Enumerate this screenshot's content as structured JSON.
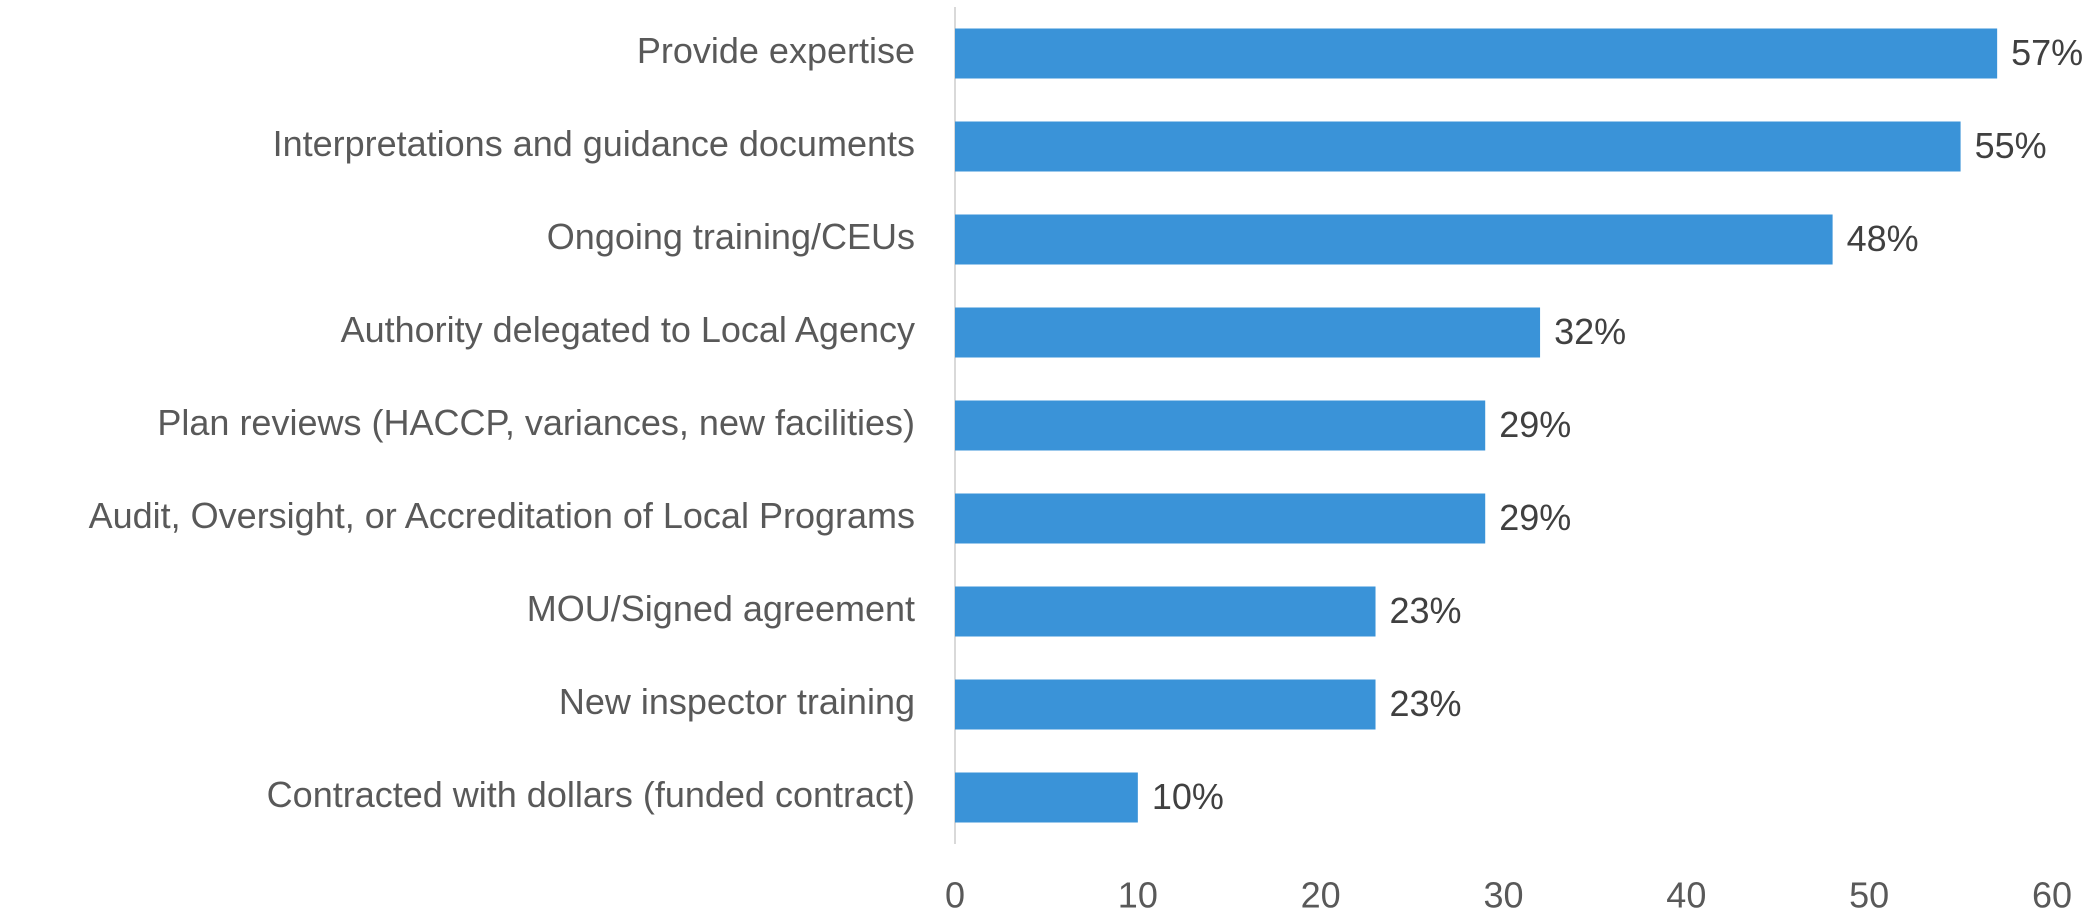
{
  "chart_data": {
    "type": "bar",
    "orientation": "horizontal",
    "categories": [
      "Provide expertise",
      "Interpretations and guidance documents",
      "Ongoing training/CEUs",
      "Authority delegated to Local Agency",
      "Plan reviews (HACCP, variances, new facilities)",
      "Audit, Oversight, or Accreditation of Local Programs",
      "MOU/Signed agreement",
      "New inspector training",
      "Contracted with dollars (funded contract)"
    ],
    "values": [
      57,
      55,
      48,
      32,
      29,
      29,
      23,
      23,
      10
    ],
    "value_labels": [
      "57%",
      "55%",
      "48%",
      "32%",
      "29%",
      "29%",
      "23%",
      "23%",
      "10%"
    ],
    "color": "#3a93d8",
    "xlim": [
      0,
      60
    ],
    "xticks": [
      0,
      10,
      20,
      30,
      40,
      50,
      60
    ],
    "grid": false
  }
}
